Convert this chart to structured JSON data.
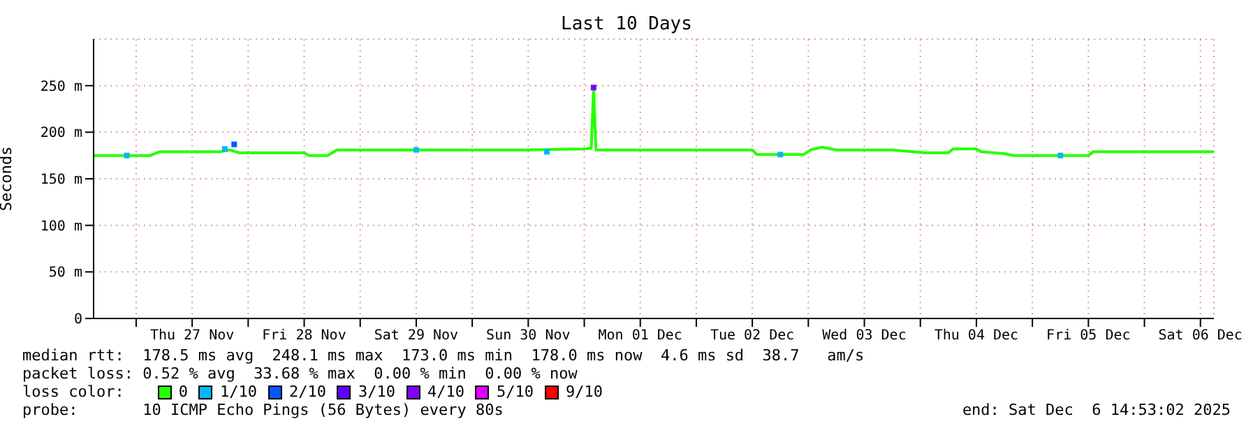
{
  "chart_data": {
    "type": "line",
    "title": "Last 10 Days",
    "ylabel": "Seconds",
    "xlim": [
      "2025-11-26T14:53",
      "2025-12-06T14:53"
    ],
    "xticks": [
      {
        "value": "2025-11-27T00:00",
        "label": null
      },
      {
        "value": "2025-11-27T12:00",
        "label": "Thu 27 Nov"
      },
      {
        "value": "2025-11-28T00:00",
        "label": null
      },
      {
        "value": "2025-11-28T12:00",
        "label": "Fri 28 Nov"
      },
      {
        "value": "2025-11-29T00:00",
        "label": null
      },
      {
        "value": "2025-11-29T12:00",
        "label": "Sat 29 Nov"
      },
      {
        "value": "2025-11-30T00:00",
        "label": null
      },
      {
        "value": "2025-11-30T12:00",
        "label": "Sun 30 Nov"
      },
      {
        "value": "2025-12-01T00:00",
        "label": null
      },
      {
        "value": "2025-12-01T12:00",
        "label": "Mon 01 Dec"
      },
      {
        "value": "2025-12-02T00:00",
        "label": null
      },
      {
        "value": "2025-12-02T12:00",
        "label": "Tue 02 Dec"
      },
      {
        "value": "2025-12-03T00:00",
        "label": null
      },
      {
        "value": "2025-12-03T12:00",
        "label": "Wed 03 Dec"
      },
      {
        "value": "2025-12-04T00:00",
        "label": null
      },
      {
        "value": "2025-12-04T12:00",
        "label": "Thu 04 Dec"
      },
      {
        "value": "2025-12-05T00:00",
        "label": null
      },
      {
        "value": "2025-12-05T12:00",
        "label": "Fri 05 Dec"
      },
      {
        "value": "2025-12-06T00:00",
        "label": null
      },
      {
        "value": "2025-12-06T12:00",
        "label": "Sat 06 Dec"
      }
    ],
    "ylim": [
      0,
      300
    ],
    "yticks": [
      0,
      {
        "value": 50,
        "label": "50 m"
      },
      {
        "value": 100,
        "label": "100 m"
      },
      {
        "value": 150,
        "label": "150 m"
      },
      {
        "value": 200,
        "label": "200 m"
      },
      {
        "value": 250,
        "label": "250 m"
      }
    ],
    "grid": true,
    "legend": "bottom",
    "legend_title": "loss color:",
    "line_style": "solid",
    "series": [
      {
        "name": "0",
        "type": "line",
        "color": "#26ff00",
        "marker": "none",
        "x": [
          "2025-11-26T15:00",
          "2025-11-27T03:00",
          "2025-11-27T05:00",
          "2025-11-27T18:00",
          "2025-11-27T20:00",
          "2025-11-27T22:00",
          "2025-11-28T12:00",
          "2025-11-28T13:00",
          "2025-11-28T17:00",
          "2025-11-28T19:00",
          "2025-11-30T12:00",
          "2025-12-01T00:00",
          "2025-12-01T01:30",
          "2025-12-01T02:00",
          "2025-12-01T02:30",
          "2025-12-02T12:00",
          "2025-12-02T13:00",
          "2025-12-02T23:00",
          "2025-12-03T00:30",
          "2025-12-03T03:00",
          "2025-12-03T06:00",
          "2025-12-03T18:00",
          "2025-12-04T01:00",
          "2025-12-04T06:00",
          "2025-12-04T07:00",
          "2025-12-04T12:00",
          "2025-12-04T13:00",
          "2025-12-04T18:00",
          "2025-12-04T20:00",
          "2025-12-05T12:00",
          "2025-12-05T13:00",
          "2025-12-06T14:50"
        ],
        "values": [
          175,
          175,
          179,
          179,
          181,
          178,
          178,
          175,
          175,
          181,
          181,
          182,
          183,
          248,
          181,
          181,
          176,
          176,
          181,
          184,
          181,
          181,
          178,
          178,
          182,
          182,
          179,
          177,
          175,
          175,
          179,
          179
        ]
      },
      {
        "name": "1/10",
        "type": "scatter",
        "color": "#00b8ff",
        "marker": "square",
        "x": [
          "2025-11-26T22:00",
          "2025-11-27T19:00",
          "2025-11-29T12:00",
          "2025-11-30T16:00",
          "2025-12-02T18:00",
          "2025-12-05T06:00"
        ],
        "values": [
          175,
          182,
          181,
          179,
          176,
          175
        ]
      },
      {
        "name": "2/10",
        "type": "scatter",
        "color": "#0059ff",
        "marker": "square",
        "x": [
          "2025-11-27T21:00"
        ],
        "values": [
          187
        ]
      },
      {
        "name": "3/10",
        "type": "scatter",
        "color": "#5e00ff",
        "marker": "square"
      },
      {
        "name": "4/10",
        "type": "scatter",
        "color": "#7e00ff",
        "marker": "square",
        "x": [
          "2025-12-01T02:00"
        ],
        "values": [
          248
        ]
      },
      {
        "name": "5/10",
        "type": "scatter",
        "color": "#dd00ff",
        "marker": "square"
      },
      {
        "name": "9/10",
        "type": "scatter",
        "color": "#ff0000",
        "marker": "square"
      }
    ],
    "annotations": [
      "median rtt:  178.5 ms avg  248.1 ms max  173.0 ms min  178.0 ms now  4.6 ms sd  38.7   am/s",
      "packet loss: 0.52 % avg  33.68 % max  0.00 % min  0.00 % now",
      "probe:       10 ICMP Echo Pings (56 Bytes) every 80s",
      "end: Sat Dec  6 14:53:02 2025"
    ]
  }
}
